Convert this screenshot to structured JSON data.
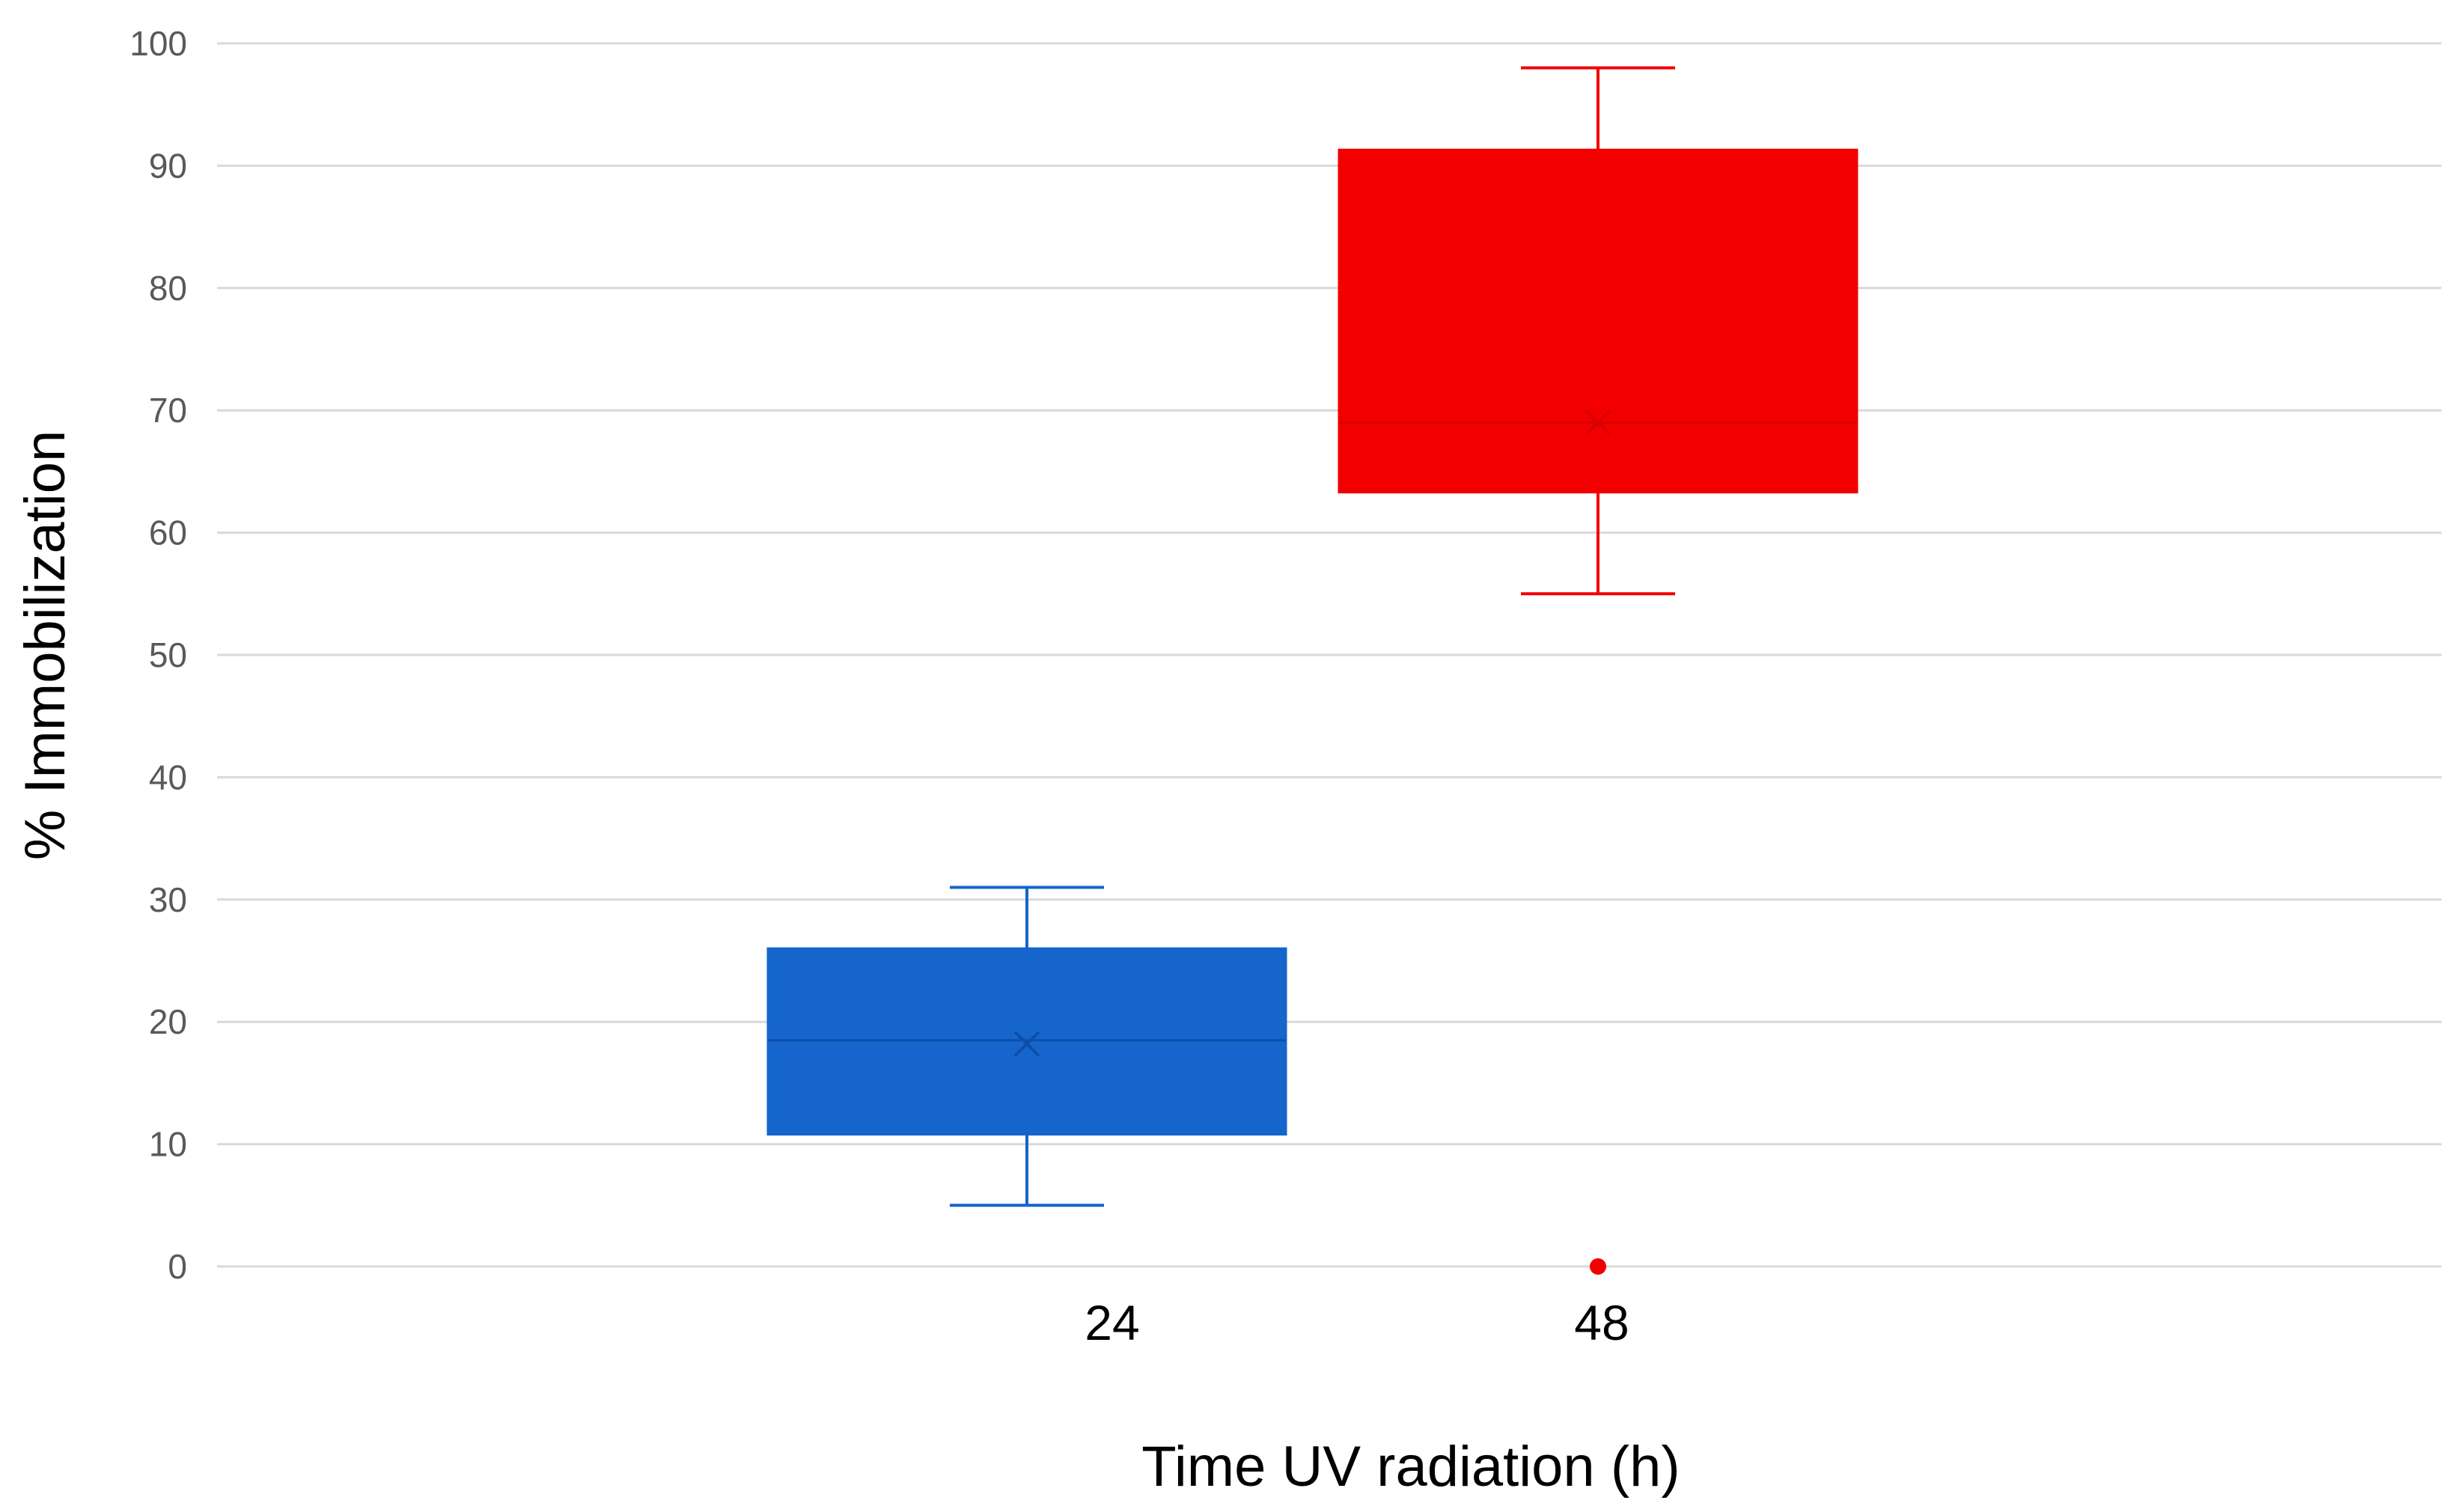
{
  "chart_data": {
    "type": "box",
    "title": "",
    "xlabel": "Time UV radiation (h)",
    "ylabel": "% Immobilization",
    "ylim": [
      0,
      100
    ],
    "yticks": [
      0,
      10,
      20,
      30,
      40,
      50,
      60,
      70,
      80,
      90,
      100
    ],
    "ytick_labels": [
      "0",
      "10",
      "20",
      "30",
      "40",
      "50",
      "60",
      "70",
      "80",
      "90",
      "100"
    ],
    "grid": true,
    "categories": [
      "24",
      "48"
    ],
    "series": [
      {
        "name": "24",
        "color": "#1565cc",
        "min": 5,
        "q1": 10.8,
        "median": 18.5,
        "mean": 18.2,
        "q3": 26,
        "max": 31,
        "outliers": []
      },
      {
        "name": "48",
        "color": "#f20000",
        "min": 55,
        "q1": 63.3,
        "median": 69,
        "mean": 69,
        "q3": 91.3,
        "max": 98,
        "outliers": [
          0
        ]
      }
    ]
  }
}
